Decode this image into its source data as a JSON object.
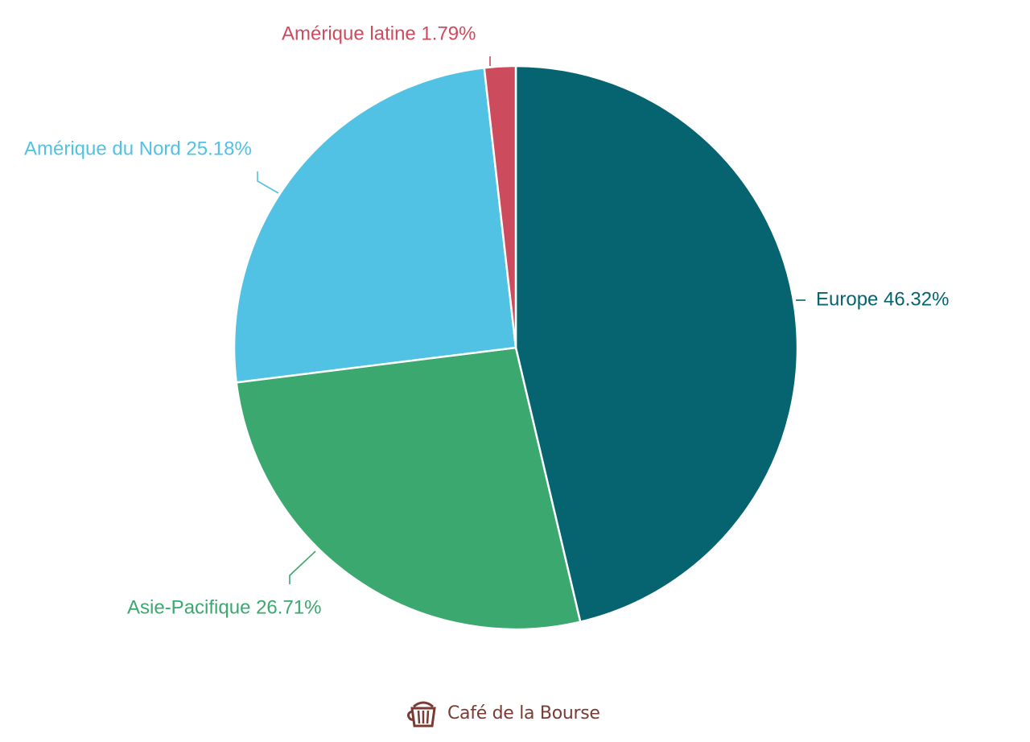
{
  "chart_data": {
    "type": "pie",
    "start_angle_deg": 0,
    "direction": "clockwise",
    "slices": [
      {
        "label": "Europe",
        "value": 46.32,
        "display": "Europe 46.32%",
        "color": "#05646f"
      },
      {
        "label": "Asie-Pacifique",
        "value": 26.71,
        "display": "Asie-Pacifique 26.71%",
        "color": "#3aa86f"
      },
      {
        "label": "Amérique du Nord",
        "value": 25.18,
        "display": "Amérique du Nord 25.18%",
        "color": "#51c1e4"
      },
      {
        "label": "Amérique latine",
        "value": 1.79,
        "display": "Amérique latine 1.79%",
        "color": "#cc4b5d"
      }
    ]
  },
  "watermark": {
    "text": "Café de la Bourse",
    "icon": "coffee-cup-icon",
    "color": "#7a3b35"
  }
}
